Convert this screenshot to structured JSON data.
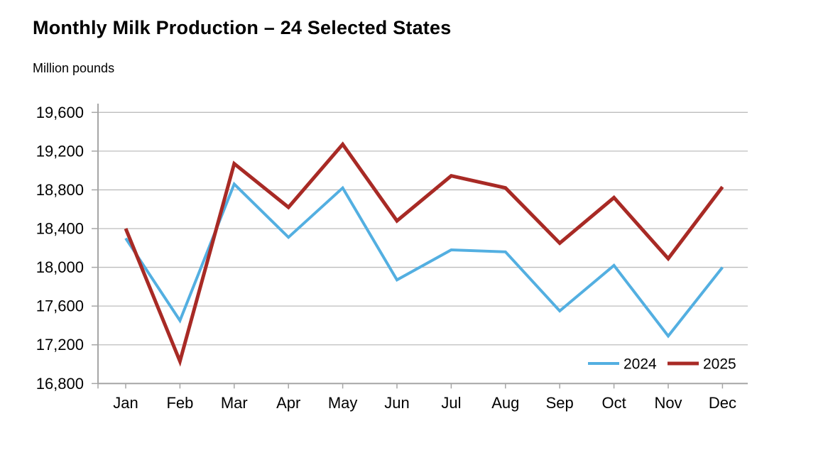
{
  "page": {
    "title": "Monthly Milk Production – 24 Selected States",
    "units_label": "Million pounds"
  },
  "chart_data": {
    "type": "line",
    "title": "Monthly Milk Production – 24 Selected States",
    "ylabel": "Million pounds",
    "categories": [
      "Jan",
      "Feb",
      "Mar",
      "Apr",
      "May",
      "Jun",
      "Jul",
      "Aug",
      "Sep",
      "Oct",
      "Nov",
      "Dec"
    ],
    "series": [
      {
        "name": "2024",
        "color": "#53AFE1",
        "stroke_width": 4,
        "values": [
          18300,
          17450,
          18860,
          18310,
          18820,
          17870,
          18180,
          18160,
          17550,
          18020,
          17290,
          18000
        ]
      },
      {
        "name": "2025",
        "color": "#A82A25",
        "stroke_width": 5,
        "values": [
          18400,
          17030,
          19070,
          18620,
          19270,
          18480,
          18945,
          18820,
          18250,
          18720,
          18090,
          18830
        ]
      }
    ],
    "ylim": [
      16800,
      19600
    ],
    "ytick_step": 400,
    "ytick_labels": [
      "19,600",
      "19,200",
      "18,800",
      "18,400",
      "18,000",
      "17,600",
      "17,200",
      "16,800"
    ],
    "grid": true,
    "legend_position": "bottom-right",
    "colors": {
      "gridline": "#BDBDBD",
      "axis": "#A6A6A6",
      "text": "#000000"
    }
  }
}
